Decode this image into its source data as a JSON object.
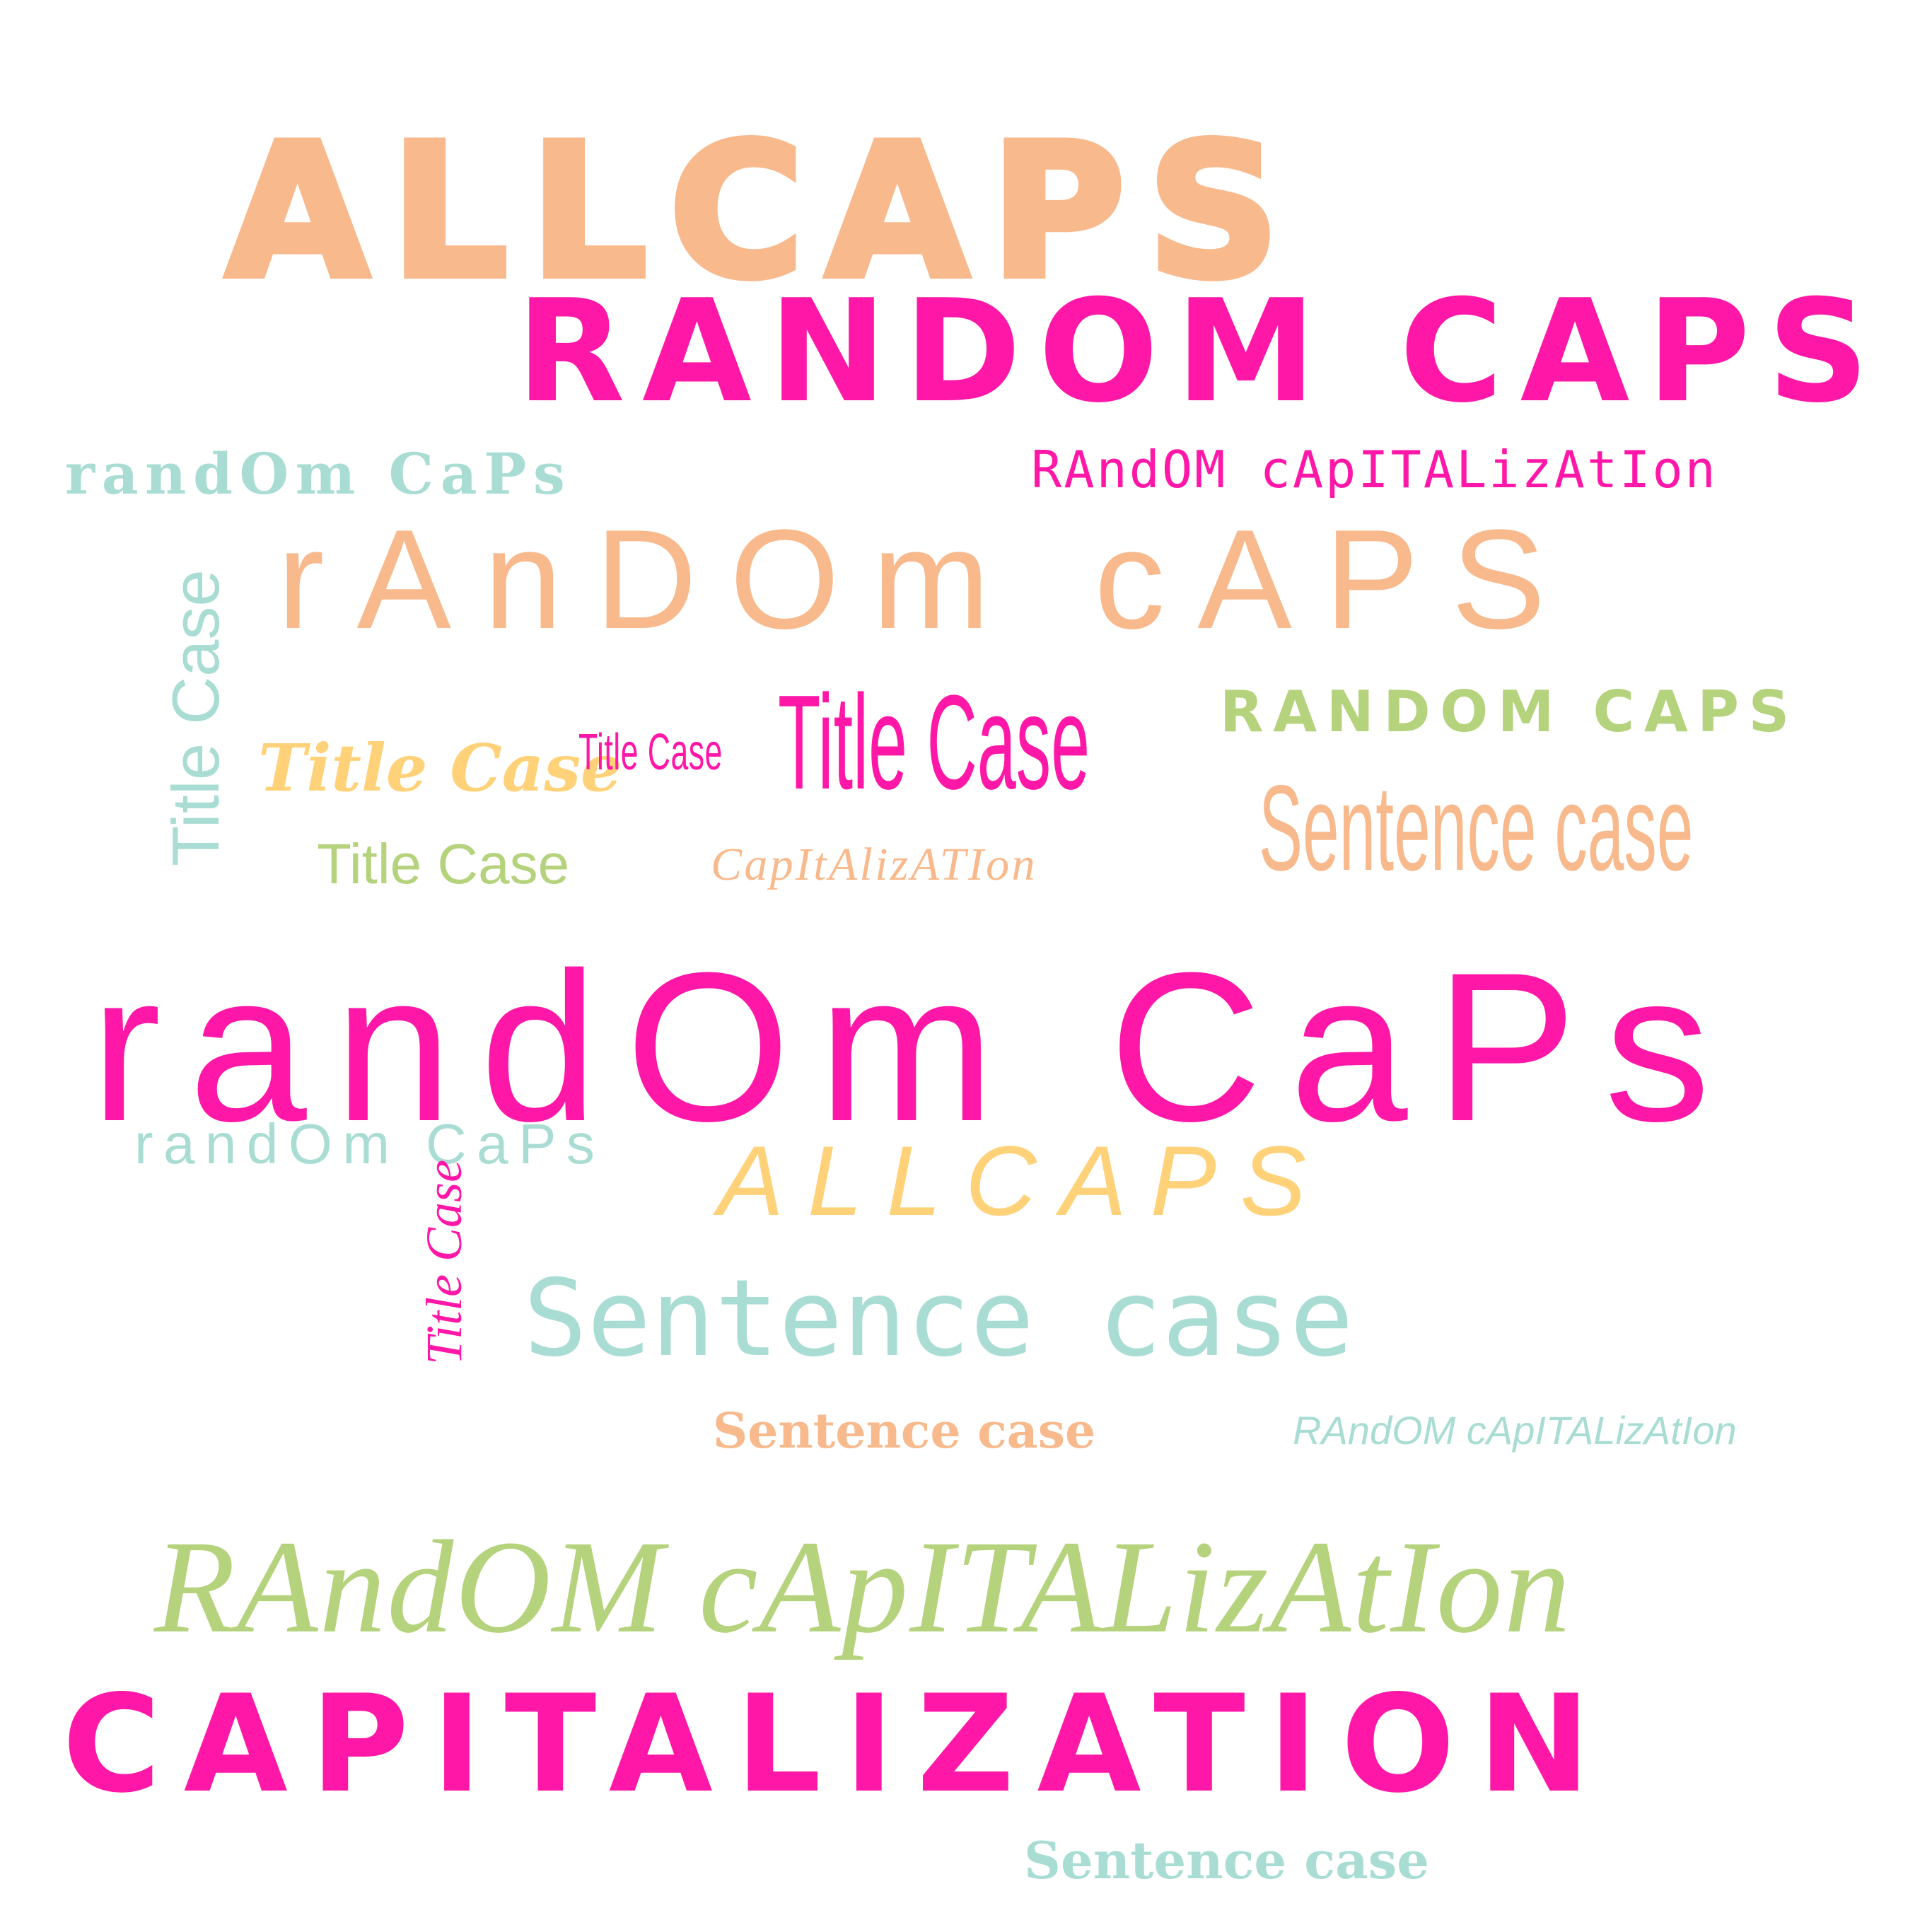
{
  "palette": {
    "peach": "#F8B98C",
    "pink": "#FF17A8",
    "mint": "#A9DDD3",
    "lime": "#B5D27C",
    "yellow": "#FFD27A"
  },
  "words": {
    "w1": "ALLCAPS",
    "w2": "RANDOM CAPS",
    "w3": "randOm CaPs",
    "w4": "RAndOM cApITALizAtIon",
    "w5": "rAnDOm cAPS",
    "w6": "Title Case",
    "w7": "Title Case",
    "w8": "Title Case",
    "w9": "Title Case",
    "w10": "RANDOM CAPS",
    "w11": "Sentence case",
    "w12": "Title Case",
    "w13": "CapItAlizATIon",
    "w14": "randOm CaPs",
    "w15": "randOm CaPs",
    "w16": "ALLCAPS",
    "w17": "Title Case",
    "w18": "Sentence case",
    "w19": "Sentence case",
    "w20": "RAndOM cApITALizAtIon",
    "w21": "RAndOM cApITALizAtIon",
    "w22": "CAPITALIZATION",
    "w23": "Sentence case"
  }
}
